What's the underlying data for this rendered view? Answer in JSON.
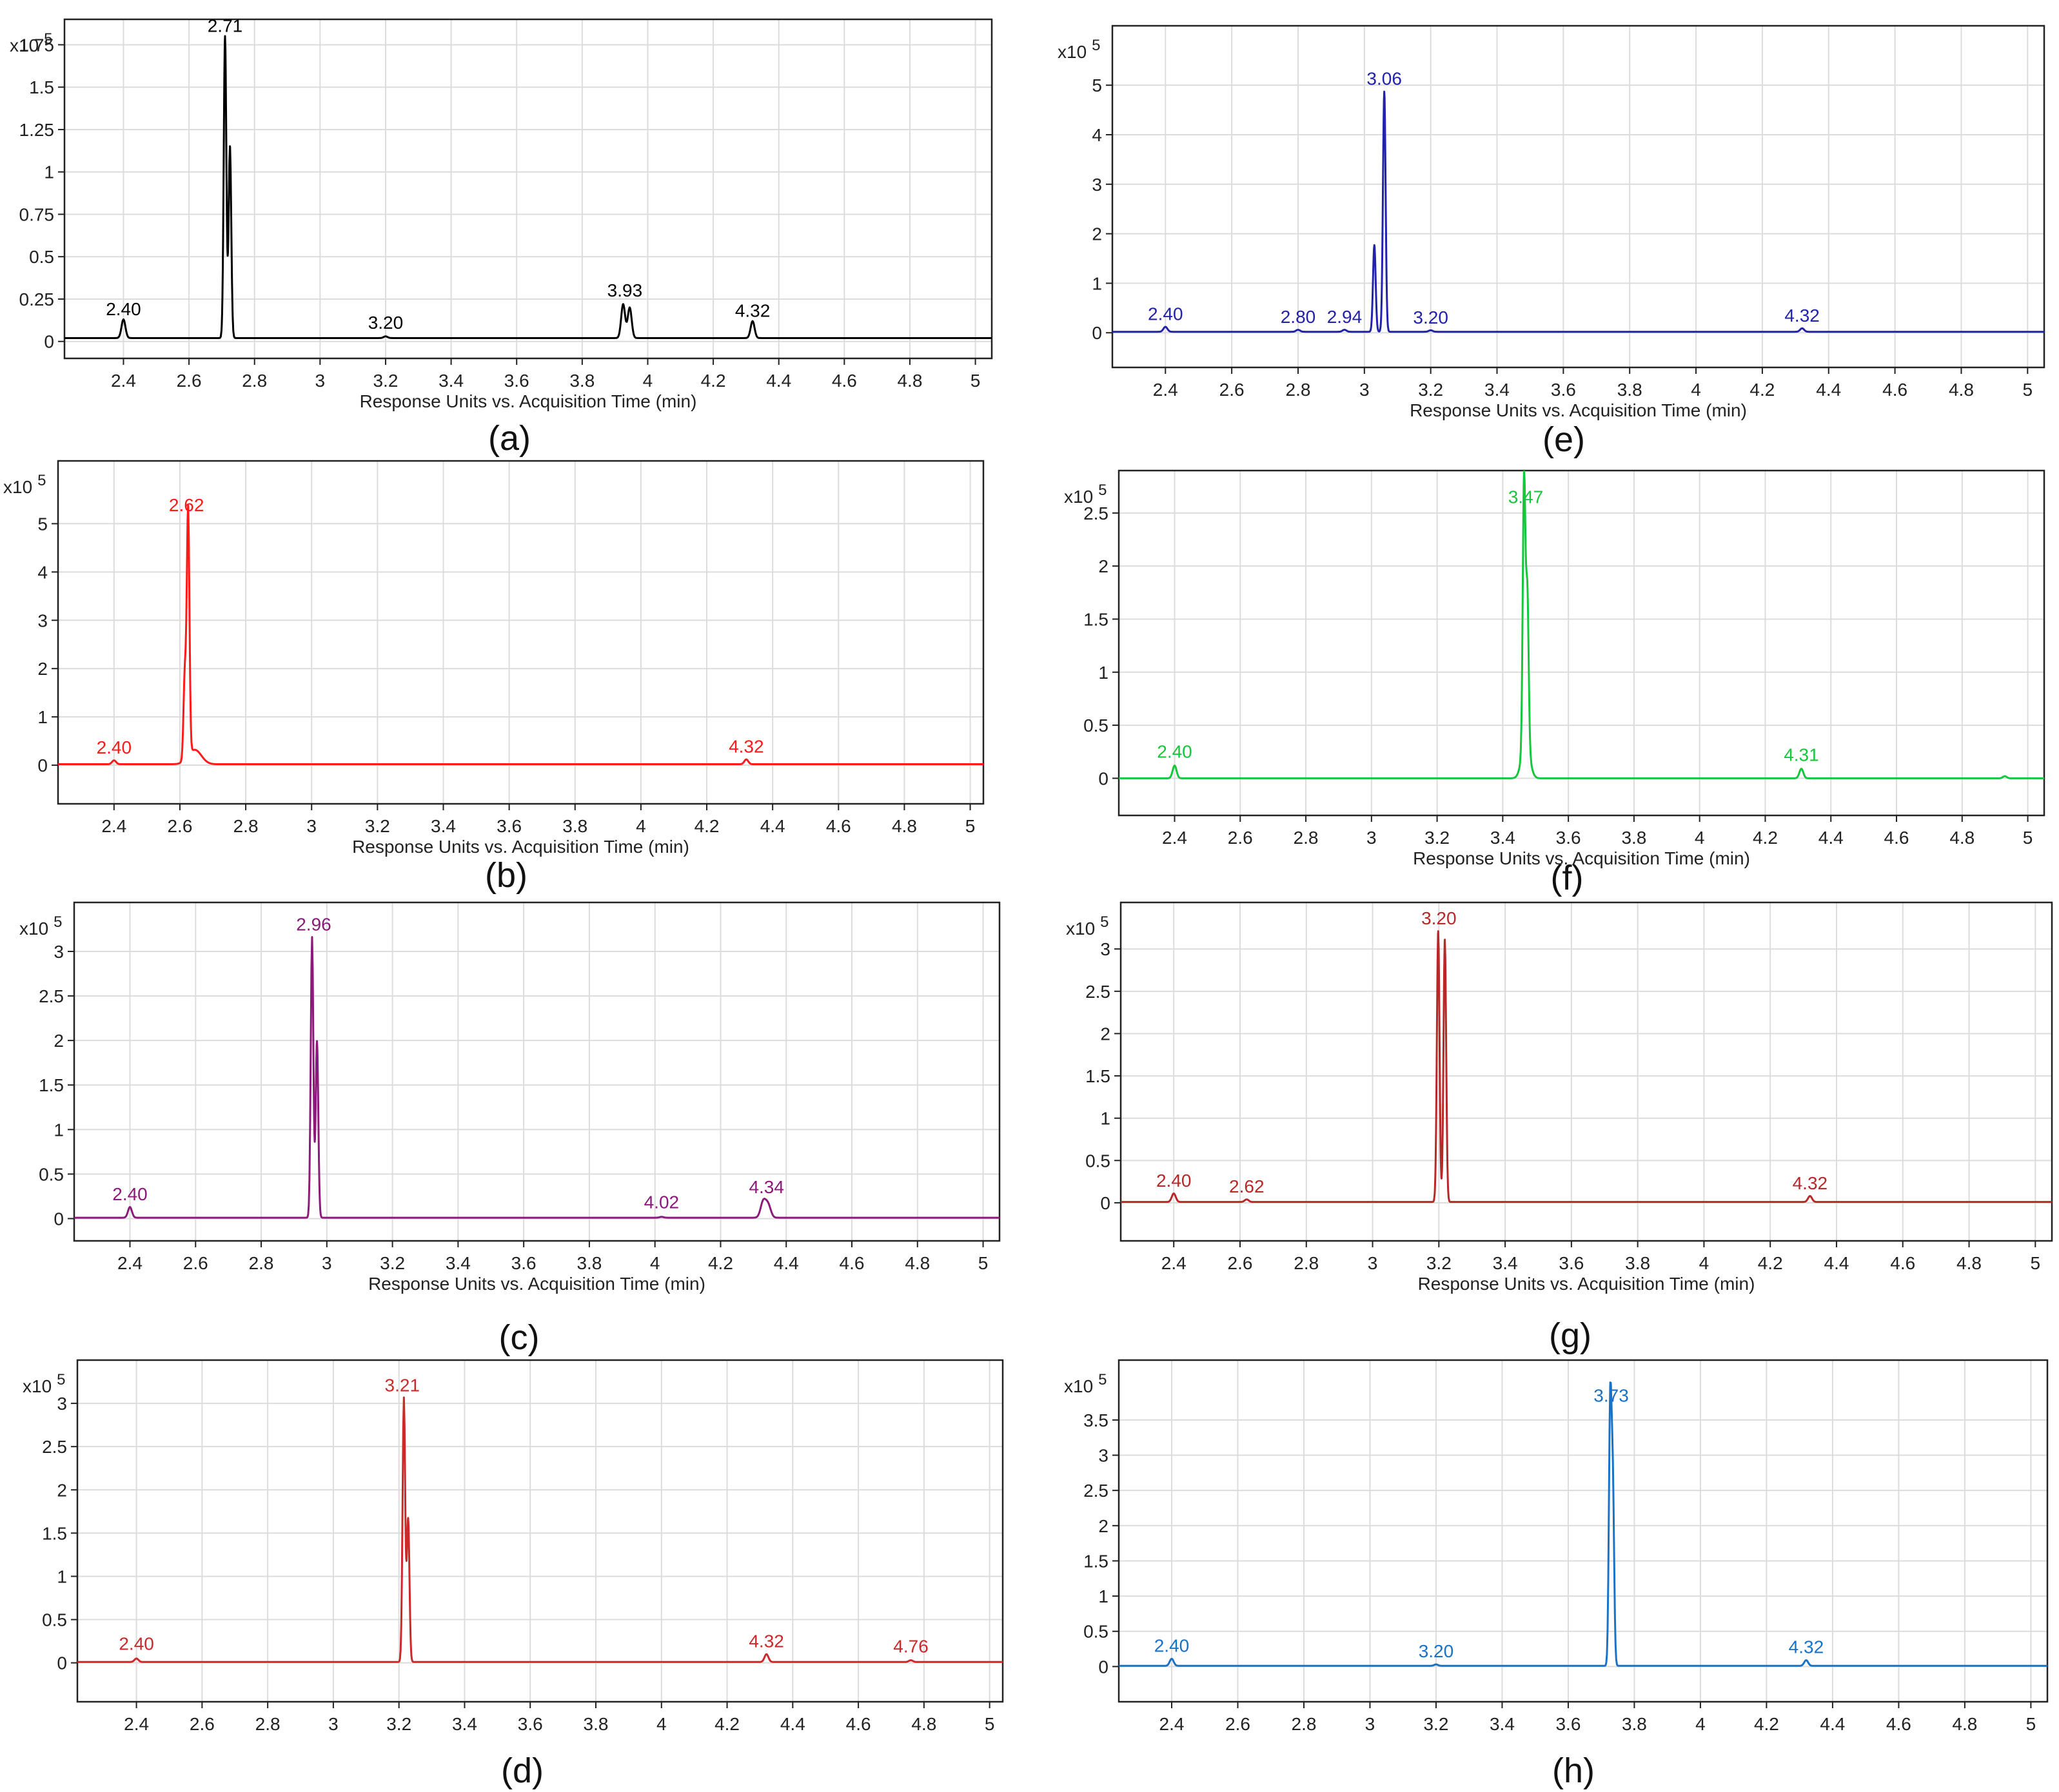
{
  "x_axis_title": "Response Units vs. Acquisition Time (min)",
  "y_multiplier": "x10",
  "y_exponent": "5",
  "x_ticks": [
    "2.4",
    "2.6",
    "2.8",
    "3",
    "3.2",
    "3.4",
    "3.6",
    "3.8",
    "4",
    "4.2",
    "4.4",
    "4.6",
    "4.8",
    "5"
  ],
  "chart_data": [
    {
      "type": "line",
      "panel_label": "(a)",
      "color": "#000000",
      "show_x_title": true,
      "xlim": [
        2.22,
        5.05
      ],
      "ylim": [
        -0.1,
        1.9
      ],
      "y_ticks": [
        0,
        0.25,
        0.5,
        0.75,
        1,
        1.25,
        1.5,
        1.75
      ],
      "y_tick_labels": [
        "0",
        "0.25",
        "0.5",
        "0.75",
        "1",
        "1.25",
        "1.5",
        "1.75"
      ],
      "baseline": 0.02,
      "peaks": [
        {
          "x": 2.4,
          "y": 0.11,
          "w": 0.006
        },
        {
          "x": 2.71,
          "y": 1.78,
          "w": 0.004
        },
        {
          "x": 2.725,
          "y": 1.13,
          "w": 0.004
        },
        {
          "x": 3.2,
          "y": 0.01,
          "w": 0.006
        },
        {
          "x": 3.925,
          "y": 0.2,
          "w": 0.006
        },
        {
          "x": 3.945,
          "y": 0.18,
          "w": 0.006
        },
        {
          "x": 4.32,
          "y": 0.1,
          "w": 0.006
        }
      ],
      "peak_labels": [
        {
          "x": 2.4,
          "y": 0.11,
          "text": "2.40"
        },
        {
          "x": 2.71,
          "y": 1.78,
          "text": "2.71"
        },
        {
          "x": 3.2,
          "y": 0.03,
          "text": "3.20"
        },
        {
          "x": 3.93,
          "y": 0.22,
          "text": "3.93"
        },
        {
          "x": 4.32,
          "y": 0.1,
          "text": "4.32"
        }
      ]
    },
    {
      "type": "line",
      "panel_label": "(b)",
      "color": "#ff1a1a",
      "show_x_title": true,
      "xlim": [
        2.23,
        5.04
      ],
      "ylim": [
        -0.8,
        6.3
      ],
      "y_ticks": [
        0,
        1,
        2,
        3,
        4,
        5
      ],
      "y_tick_labels": [
        "0",
        "1",
        "2",
        "3",
        "4",
        "5"
      ],
      "baseline": 0.02,
      "peaks": [
        {
          "x": 2.4,
          "y": 0.08,
          "w": 0.006
        },
        {
          "x": 2.615,
          "y": 1.75,
          "w": 0.004
        },
        {
          "x": 2.625,
          "y": 5.1,
          "w": 0.004
        },
        {
          "x": 2.645,
          "y": 0.3,
          "w": 0.02
        },
        {
          "x": 4.32,
          "y": 0.1,
          "w": 0.006
        }
      ],
      "peak_labels": [
        {
          "x": 2.4,
          "y": 0.08,
          "text": "2.40"
        },
        {
          "x": 2.62,
          "y": 5.1,
          "text": "2.62"
        },
        {
          "x": 4.32,
          "y": 0.1,
          "text": "4.32"
        }
      ]
    },
    {
      "type": "line",
      "panel_label": "(c)",
      "color": "#8b1a7a",
      "show_x_title": true,
      "xlim": [
        2.23,
        5.05
      ],
      "ylim": [
        -0.25,
        3.55
      ],
      "y_ticks": [
        0,
        0.5,
        1,
        1.5,
        2,
        2.5,
        3
      ],
      "y_tick_labels": [
        "0",
        "0.5",
        "1",
        "1.5",
        "2",
        "2.5",
        "3"
      ],
      "baseline": 0.01,
      "peaks": [
        {
          "x": 2.4,
          "y": 0.12,
          "w": 0.006
        },
        {
          "x": 2.955,
          "y": 3.15,
          "w": 0.004
        },
        {
          "x": 2.97,
          "y": 1.98,
          "w": 0.004
        },
        {
          "x": 4.02,
          "y": 0.01,
          "w": 0.006
        },
        {
          "x": 4.33,
          "y": 0.18,
          "w": 0.008
        },
        {
          "x": 4.345,
          "y": 0.14,
          "w": 0.008
        }
      ],
      "peak_labels": [
        {
          "x": 2.4,
          "y": 0.12,
          "text": "2.40"
        },
        {
          "x": 2.96,
          "y": 3.15,
          "text": "2.96"
        },
        {
          "x": 4.02,
          "y": 0.03,
          "text": "4.02"
        },
        {
          "x": 4.34,
          "y": 0.2,
          "text": "4.34"
        }
      ]
    },
    {
      "type": "line",
      "panel_label": "(d)",
      "color": "#cc2a2a",
      "show_x_title": false,
      "xlim": [
        2.22,
        5.04
      ],
      "ylim": [
        -0.45,
        3.5
      ],
      "y_ticks": [
        0,
        0.5,
        1,
        1.5,
        2,
        2.5,
        3
      ],
      "y_tick_labels": [
        "0",
        "0.5",
        "1",
        "1.5",
        "2",
        "2.5",
        "3"
      ],
      "baseline": 0.01,
      "peaks": [
        {
          "x": 2.4,
          "y": 0.04,
          "w": 0.006
        },
        {
          "x": 3.215,
          "y": 3.05,
          "w": 0.004
        },
        {
          "x": 3.228,
          "y": 1.65,
          "w": 0.004
        },
        {
          "x": 4.32,
          "y": 0.09,
          "w": 0.006
        },
        {
          "x": 4.76,
          "y": 0.02,
          "w": 0.006
        }
      ],
      "peak_labels": [
        {
          "x": 2.4,
          "y": 0.06,
          "text": "2.40"
        },
        {
          "x": 3.21,
          "y": 3.05,
          "text": "3.21"
        },
        {
          "x": 4.32,
          "y": 0.09,
          "text": "4.32"
        },
        {
          "x": 4.76,
          "y": 0.03,
          "text": "4.76"
        }
      ]
    },
    {
      "type": "line",
      "panel_label": "(e)",
      "color": "#2222aa",
      "show_x_title": true,
      "xlim": [
        2.24,
        5.05
      ],
      "ylim": [
        -0.7,
        6.2
      ],
      "y_ticks": [
        0,
        1,
        2,
        3,
        4,
        5
      ],
      "y_tick_labels": [
        "0",
        "1",
        "2",
        "3",
        "4",
        "5"
      ],
      "baseline": 0.02,
      "peaks": [
        {
          "x": 2.4,
          "y": 0.1,
          "w": 0.006
        },
        {
          "x": 2.8,
          "y": 0.04,
          "w": 0.006
        },
        {
          "x": 2.94,
          "y": 0.04,
          "w": 0.006
        },
        {
          "x": 3.03,
          "y": 1.75,
          "w": 0.004
        },
        {
          "x": 3.06,
          "y": 4.85,
          "w": 0.004
        },
        {
          "x": 3.2,
          "y": 0.03,
          "w": 0.006
        },
        {
          "x": 4.32,
          "y": 0.07,
          "w": 0.006
        }
      ],
      "peak_labels": [
        {
          "x": 2.4,
          "y": 0.1,
          "text": "2.40"
        },
        {
          "x": 2.8,
          "y": 0.04,
          "text": "2.80"
        },
        {
          "x": 2.94,
          "y": 0.04,
          "text": "2.94"
        },
        {
          "x": 3.06,
          "y": 4.85,
          "text": "3.06"
        },
        {
          "x": 3.2,
          "y": 0.03,
          "text": "3.20"
        },
        {
          "x": 4.32,
          "y": 0.07,
          "text": "4.32"
        }
      ]
    },
    {
      "type": "line",
      "panel_label": "(f)",
      "color": "#16c63c",
      "show_x_title": true,
      "xlim": [
        2.23,
        5.05
      ],
      "ylim": [
        -0.35,
        2.9
      ],
      "y_ticks": [
        0,
        0.5,
        1,
        1.5,
        2,
        2.5
      ],
      "y_tick_labels": [
        "0",
        "0.5",
        "1",
        "1.5",
        "2",
        "2.5"
      ],
      "baseline": 0.0,
      "peaks": [
        {
          "x": 2.4,
          "y": 0.12,
          "w": 0.006
        },
        {
          "x": 3.465,
          "y": 2.52,
          "w": 0.004
        },
        {
          "x": 3.475,
          "y": 1.42,
          "w": 0.004
        },
        {
          "x": 3.47,
          "y": 0.35,
          "w": 0.012
        },
        {
          "x": 4.31,
          "y": 0.09,
          "w": 0.006
        },
        {
          "x": 4.93,
          "y": 0.02,
          "w": 0.006
        }
      ],
      "peak_labels": [
        {
          "x": 2.4,
          "y": 0.12,
          "text": "2.40"
        },
        {
          "x": 3.47,
          "y": 2.52,
          "text": "3.47"
        },
        {
          "x": 4.31,
          "y": 0.09,
          "text": "4.31"
        }
      ]
    },
    {
      "type": "line",
      "panel_label": "(g)",
      "color": "#b82828",
      "show_x_title": true,
      "xlim": [
        2.24,
        5.05
      ],
      "ylim": [
        -0.45,
        3.55
      ],
      "y_ticks": [
        0,
        0.5,
        1,
        1.5,
        2,
        2.5,
        3
      ],
      "y_tick_labels": [
        "0",
        "0.5",
        "1",
        "1.5",
        "2",
        "2.5",
        "3"
      ],
      "baseline": 0.01,
      "peaks": [
        {
          "x": 2.4,
          "y": 0.1,
          "w": 0.006
        },
        {
          "x": 2.62,
          "y": 0.03,
          "w": 0.006
        },
        {
          "x": 3.198,
          "y": 3.2,
          "w": 0.004
        },
        {
          "x": 3.218,
          "y": 3.1,
          "w": 0.004
        },
        {
          "x": 4.32,
          "y": 0.07,
          "w": 0.006
        }
      ],
      "peak_labels": [
        {
          "x": 2.4,
          "y": 0.1,
          "text": "2.40"
        },
        {
          "x": 2.62,
          "y": 0.03,
          "text": "2.62"
        },
        {
          "x": 3.2,
          "y": 3.2,
          "text": "3.20"
        },
        {
          "x": 4.32,
          "y": 0.07,
          "text": "4.32"
        }
      ]
    },
    {
      "type": "line",
      "panel_label": "(h)",
      "color": "#1a72c4",
      "show_x_title": false,
      "xlim": [
        2.24,
        5.05
      ],
      "ylim": [
        -0.5,
        4.35
      ],
      "y_ticks": [
        0,
        0.5,
        1,
        1.5,
        2,
        2.5,
        3,
        3.5
      ],
      "y_tick_labels": [
        "0",
        "0.5",
        "1",
        "1.5",
        "2",
        "2.5",
        "3",
        "3.5"
      ],
      "baseline": 0.01,
      "peaks": [
        {
          "x": 2.4,
          "y": 0.1,
          "w": 0.006
        },
        {
          "x": 3.2,
          "y": 0.02,
          "w": 0.006
        },
        {
          "x": 3.727,
          "y": 3.65,
          "w": 0.004
        },
        {
          "x": 3.735,
          "y": 2.45,
          "w": 0.004
        },
        {
          "x": 4.32,
          "y": 0.08,
          "w": 0.006
        }
      ],
      "peak_labels": [
        {
          "x": 2.4,
          "y": 0.1,
          "text": "2.40"
        },
        {
          "x": 3.2,
          "y": 0.02,
          "text": "3.20"
        },
        {
          "x": 3.73,
          "y": 3.65,
          "text": "3.73"
        },
        {
          "x": 4.32,
          "y": 0.08,
          "text": "4.32"
        }
      ]
    }
  ]
}
